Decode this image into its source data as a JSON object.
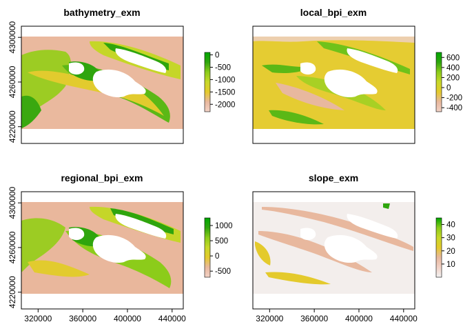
{
  "chart_data": [
    {
      "type": "heatmap",
      "title": "bathymetry_exm",
      "legend": {
        "ticks": [
          "0",
          "-500",
          "-1000",
          "-1500",
          "-2000"
        ],
        "tick_values": [
          0,
          -500,
          -1000,
          -1500,
          -2000
        ],
        "range": [
          -2300,
          100
        ],
        "colors": [
          "#f2d2c6",
          "#e8b89e",
          "#e4ca2c",
          "#c8d829",
          "#8ccc1a",
          "#2fa50d",
          "#00a600"
        ]
      },
      "y_ticks": [
        "4220000",
        "4260000",
        "4300000"
      ],
      "x_ticks": [],
      "xlim": [
        305000,
        450000
      ],
      "ylim": [
        4205000,
        4310000
      ],
      "raster_extent": {
        "x": [
          305000,
          450000
        ],
        "y": [
          4220000,
          4300000
        ]
      },
      "fill_color": "#eab99e"
    },
    {
      "type": "heatmap",
      "title": "local_bpi_exm",
      "legend": {
        "ticks": [
          "600",
          "400",
          "200",
          "0",
          "-200",
          "-400"
        ],
        "tick_values": [
          600,
          400,
          200,
          0,
          -200,
          -400
        ],
        "range": [
          -480,
          700
        ],
        "colors": [
          "#f2d2c6",
          "#e8b89e",
          "#e4ca2c",
          "#c8d829",
          "#8ccc1a",
          "#2fa50d",
          "#00a600"
        ]
      },
      "y_ticks": [],
      "x_ticks": [],
      "xlim": [
        305000,
        450000
      ],
      "ylim": [
        4205000,
        4310000
      ],
      "raster_extent": {
        "x": [
          305000,
          450000
        ],
        "y": [
          4220000,
          4300000
        ]
      },
      "fill_color": "#e5cc32"
    },
    {
      "type": "heatmap",
      "title": "regional_bpi_exm",
      "legend": {
        "ticks": [
          "1000",
          "500",
          "0",
          "-500"
        ],
        "tick_values": [
          1000,
          500,
          0,
          -500
        ],
        "range": [
          -700,
          1250
        ],
        "colors": [
          "#f2d2c6",
          "#e8b89e",
          "#e4ca2c",
          "#c8d829",
          "#8ccc1a",
          "#2fa50d",
          "#00a600"
        ]
      },
      "y_ticks": [
        "4220000",
        "4260000",
        "4300000"
      ],
      "x_ticks": [
        "320000",
        "360000",
        "400000",
        "440000"
      ],
      "xlim": [
        305000,
        450000
      ],
      "ylim": [
        4205000,
        4310000
      ],
      "raster_extent": {
        "x": [
          305000,
          450000
        ],
        "y": [
          4220000,
          4300000
        ]
      },
      "fill_color": "#e9b79c"
    },
    {
      "type": "heatmap",
      "title": "slope_exm",
      "legend": {
        "ticks": [
          "40",
          "30",
          "20",
          "10"
        ],
        "tick_values": [
          40,
          30,
          20,
          10
        ],
        "range": [
          0,
          45
        ],
        "colors": [
          "#f2f2f2",
          "#f2d2c6",
          "#e8b89e",
          "#e4ca2c",
          "#c8d829",
          "#8ccc1a",
          "#00a600"
        ]
      },
      "y_ticks": [],
      "x_ticks": [
        "320000",
        "360000",
        "400000",
        "440000"
      ],
      "xlim": [
        305000,
        450000
      ],
      "ylim": [
        4205000,
        4310000
      ],
      "raster_extent": {
        "x": [
          305000,
          450000
        ],
        "y": [
          4220000,
          4300000
        ]
      },
      "fill_color": "#f3eeec"
    }
  ],
  "colors": {
    "land_mask": "#ffffff",
    "green_dark": "#1f9e0a",
    "green": "#6fc21a",
    "yellow_green": "#c8d829",
    "yellow": "#e4ca2c",
    "salmon": "#e8b89e",
    "pale": "#f3eeec"
  }
}
